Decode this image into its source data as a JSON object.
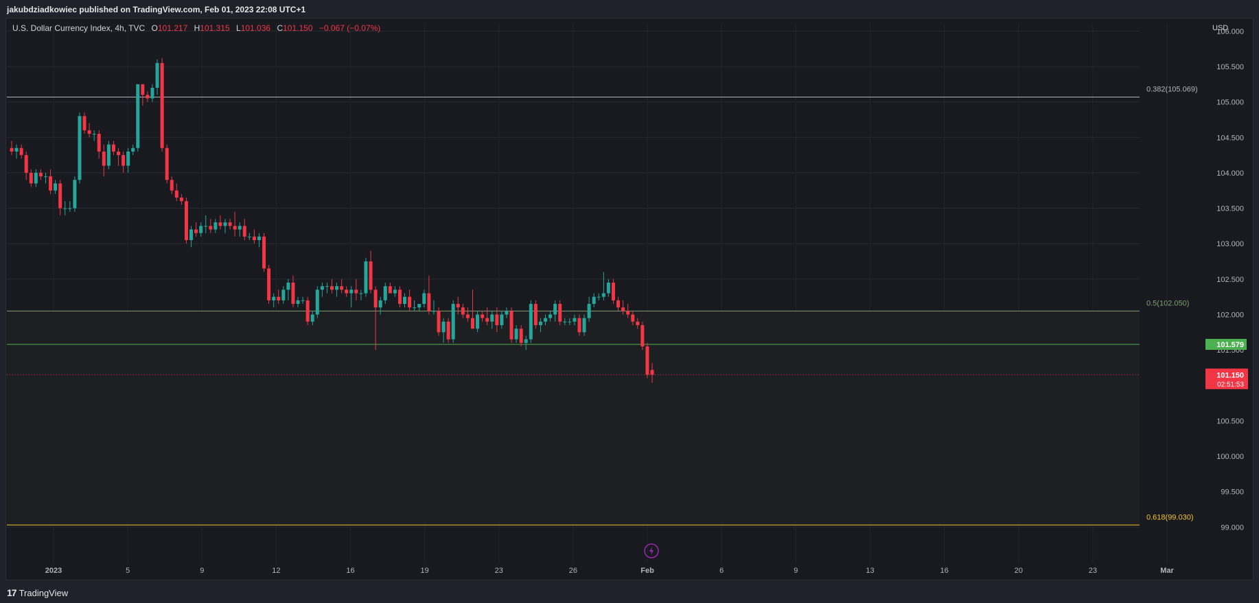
{
  "header": {
    "published": "jakubdziadkowiec published on TradingView.com, Feb 01, 2023 22:08 UTC+1"
  },
  "legend": {
    "symbol": "U.S. Dollar Currency Index, 4h, TVC",
    "o_label": "O",
    "o_value": "101.217",
    "h_label": "H",
    "h_value": "101.315",
    "l_label": "L",
    "l_value": "101.036",
    "c_label": "C",
    "c_value": "101.150",
    "change": "−0.067 (−0.07%)"
  },
  "footer": {
    "brand": "TradingView",
    "logo_mark": "17"
  },
  "colors": {
    "up": "#26a69a",
    "down": "#f23645",
    "fib_382": "#b2b5be",
    "fib_5": "#7ea06e",
    "fib_618": "#f5c431",
    "support": "#4caf50",
    "bg": "#181a20"
  },
  "chart_data": {
    "type": "candlestick",
    "title": "U.S. Dollar Currency Index, 4h, TVC",
    "currency": "USD",
    "ylim": [
      98.5,
      106.1
    ],
    "y_ticks": [
      "106.000",
      "105.500",
      "105.000",
      "104.500",
      "104.000",
      "103.500",
      "103.000",
      "102.500",
      "102.000",
      "101.500",
      "101.000",
      "100.500",
      "100.000",
      "99.500",
      "99.000"
    ],
    "x_ticks": [
      "2023",
      "5",
      "9",
      "12",
      "16",
      "19",
      "23",
      "26",
      "Feb",
      "6",
      "9",
      "13",
      "16",
      "20",
      "23",
      "Mar"
    ],
    "grid": true,
    "candles": [
      {
        "o": 104.35,
        "h": 104.45,
        "l": 104.25,
        "c": 104.3
      },
      {
        "o": 104.3,
        "h": 104.4,
        "l": 104.2,
        "c": 104.35
      },
      {
        "o": 104.35,
        "h": 104.4,
        "l": 104.2,
        "c": 104.25
      },
      {
        "o": 104.25,
        "h": 104.3,
        "l": 103.9,
        "c": 104.0
      },
      {
        "o": 104.0,
        "h": 104.05,
        "l": 103.8,
        "c": 103.85
      },
      {
        "o": 103.85,
        "h": 104.05,
        "l": 103.8,
        "c": 104.0
      },
      {
        "o": 104.0,
        "h": 104.05,
        "l": 103.9,
        "c": 103.95
      },
      {
        "o": 103.95,
        "h": 104.0,
        "l": 103.85,
        "c": 103.95
      },
      {
        "o": 103.95,
        "h": 104.05,
        "l": 103.7,
        "c": 103.75
      },
      {
        "o": 103.75,
        "h": 103.9,
        "l": 103.7,
        "c": 103.85
      },
      {
        "o": 103.85,
        "h": 103.9,
        "l": 103.4,
        "c": 103.5
      },
      {
        "o": 103.5,
        "h": 103.6,
        "l": 103.4,
        "c": 103.5
      },
      {
        "o": 103.5,
        "h": 103.6,
        "l": 103.45,
        "c": 103.5
      },
      {
        "o": 103.5,
        "h": 103.95,
        "l": 103.45,
        "c": 103.9
      },
      {
        "o": 103.9,
        "h": 104.85,
        "l": 103.85,
        "c": 104.8
      },
      {
        "o": 104.8,
        "h": 104.85,
        "l": 104.55,
        "c": 104.6
      },
      {
        "o": 104.6,
        "h": 104.7,
        "l": 104.5,
        "c": 104.55
      },
      {
        "o": 104.55,
        "h": 104.6,
        "l": 104.45,
        "c": 104.55
      },
      {
        "o": 104.55,
        "h": 104.6,
        "l": 104.2,
        "c": 104.3
      },
      {
        "o": 104.3,
        "h": 104.4,
        "l": 103.95,
        "c": 104.1
      },
      {
        "o": 104.1,
        "h": 104.45,
        "l": 104.05,
        "c": 104.4
      },
      {
        "o": 104.4,
        "h": 104.45,
        "l": 104.25,
        "c": 104.3
      },
      {
        "o": 104.3,
        "h": 104.35,
        "l": 104.1,
        "c": 104.25
      },
      {
        "o": 104.25,
        "h": 104.3,
        "l": 104.0,
        "c": 104.1
      },
      {
        "o": 104.1,
        "h": 104.35,
        "l": 104.0,
        "c": 104.3
      },
      {
        "o": 104.3,
        "h": 104.4,
        "l": 104.25,
        "c": 104.35
      },
      {
        "o": 104.35,
        "h": 105.25,
        "l": 104.3,
        "c": 105.25
      },
      {
        "o": 105.25,
        "h": 105.25,
        "l": 104.95,
        "c": 105.1
      },
      {
        "o": 105.1,
        "h": 105.15,
        "l": 105.0,
        "c": 105.05
      },
      {
        "o": 105.05,
        "h": 105.25,
        "l": 105.0,
        "c": 105.2
      },
      {
        "o": 105.2,
        "h": 105.6,
        "l": 105.1,
        "c": 105.55
      },
      {
        "o": 105.55,
        "h": 105.62,
        "l": 104.3,
        "c": 104.35
      },
      {
        "o": 104.35,
        "h": 104.4,
        "l": 103.85,
        "c": 103.9
      },
      {
        "o": 103.9,
        "h": 103.95,
        "l": 103.7,
        "c": 103.75
      },
      {
        "o": 103.75,
        "h": 103.85,
        "l": 103.6,
        "c": 103.65
      },
      {
        "o": 103.65,
        "h": 103.7,
        "l": 103.55,
        "c": 103.6
      },
      {
        "o": 103.6,
        "h": 103.65,
        "l": 103.0,
        "c": 103.05
      },
      {
        "o": 103.05,
        "h": 103.25,
        "l": 102.95,
        "c": 103.2
      },
      {
        "o": 103.2,
        "h": 103.3,
        "l": 103.1,
        "c": 103.15
      },
      {
        "o": 103.15,
        "h": 103.3,
        "l": 103.1,
        "c": 103.25
      },
      {
        "o": 103.25,
        "h": 103.4,
        "l": 103.15,
        "c": 103.25
      },
      {
        "o": 103.25,
        "h": 103.35,
        "l": 103.15,
        "c": 103.2
      },
      {
        "o": 103.2,
        "h": 103.35,
        "l": 103.15,
        "c": 103.3
      },
      {
        "o": 103.3,
        "h": 103.4,
        "l": 103.2,
        "c": 103.25
      },
      {
        "o": 103.25,
        "h": 103.35,
        "l": 103.15,
        "c": 103.3
      },
      {
        "o": 103.3,
        "h": 103.35,
        "l": 103.2,
        "c": 103.25
      },
      {
        "o": 103.25,
        "h": 103.45,
        "l": 103.1,
        "c": 103.2
      },
      {
        "o": 103.2,
        "h": 103.3,
        "l": 103.1,
        "c": 103.25
      },
      {
        "o": 103.25,
        "h": 103.35,
        "l": 103.05,
        "c": 103.1
      },
      {
        "o": 103.1,
        "h": 103.15,
        "l": 103.05,
        "c": 103.1
      },
      {
        "o": 103.1,
        "h": 103.2,
        "l": 103.0,
        "c": 103.05
      },
      {
        "o": 103.05,
        "h": 103.15,
        "l": 102.95,
        "c": 103.1
      },
      {
        "o": 103.1,
        "h": 103.15,
        "l": 102.6,
        "c": 102.65
      },
      {
        "o": 102.65,
        "h": 102.7,
        "l": 102.15,
        "c": 102.2
      },
      {
        "o": 102.2,
        "h": 102.3,
        "l": 102.1,
        "c": 102.25
      },
      {
        "o": 102.25,
        "h": 102.35,
        "l": 102.15,
        "c": 102.2
      },
      {
        "o": 102.2,
        "h": 102.4,
        "l": 102.15,
        "c": 102.35
      },
      {
        "o": 102.35,
        "h": 102.5,
        "l": 102.2,
        "c": 102.45
      },
      {
        "o": 102.45,
        "h": 102.55,
        "l": 102.1,
        "c": 102.15
      },
      {
        "o": 102.15,
        "h": 102.25,
        "l": 102.1,
        "c": 102.2
      },
      {
        "o": 102.2,
        "h": 102.25,
        "l": 102.15,
        "c": 102.2
      },
      {
        "o": 102.2,
        "h": 102.25,
        "l": 101.85,
        "c": 101.9
      },
      {
        "o": 101.9,
        "h": 102.05,
        "l": 101.85,
        "c": 102.0
      },
      {
        "o": 102.0,
        "h": 102.4,
        "l": 101.95,
        "c": 102.35
      },
      {
        "o": 102.35,
        "h": 102.45,
        "l": 102.25,
        "c": 102.4
      },
      {
        "o": 102.4,
        "h": 102.45,
        "l": 102.3,
        "c": 102.4
      },
      {
        "o": 102.4,
        "h": 102.5,
        "l": 102.3,
        "c": 102.35
      },
      {
        "o": 102.35,
        "h": 102.45,
        "l": 102.25,
        "c": 102.4
      },
      {
        "o": 102.4,
        "h": 102.5,
        "l": 102.3,
        "c": 102.35
      },
      {
        "o": 102.35,
        "h": 102.4,
        "l": 102.25,
        "c": 102.3
      },
      {
        "o": 102.3,
        "h": 102.4,
        "l": 102.1,
        "c": 102.35
      },
      {
        "o": 102.35,
        "h": 102.5,
        "l": 102.2,
        "c": 102.3
      },
      {
        "o": 102.3,
        "h": 102.35,
        "l": 102.2,
        "c": 102.3
      },
      {
        "o": 102.3,
        "h": 102.8,
        "l": 102.25,
        "c": 102.75
      },
      {
        "o": 102.75,
        "h": 102.9,
        "l": 102.3,
        "c": 102.35
      },
      {
        "o": 102.35,
        "h": 102.4,
        "l": 101.5,
        "c": 102.1
      },
      {
        "o": 102.1,
        "h": 102.25,
        "l": 102.0,
        "c": 102.2
      },
      {
        "o": 102.2,
        "h": 102.45,
        "l": 102.15,
        "c": 102.4
      },
      {
        "o": 102.4,
        "h": 102.45,
        "l": 102.3,
        "c": 102.3
      },
      {
        "o": 102.3,
        "h": 102.4,
        "l": 102.25,
        "c": 102.35
      },
      {
        "o": 102.35,
        "h": 102.4,
        "l": 102.1,
        "c": 102.15
      },
      {
        "o": 102.15,
        "h": 102.3,
        "l": 102.1,
        "c": 102.25
      },
      {
        "o": 102.25,
        "h": 102.35,
        "l": 102.05,
        "c": 102.1
      },
      {
        "o": 102.1,
        "h": 102.2,
        "l": 102.05,
        "c": 102.1
      },
      {
        "o": 102.1,
        "h": 102.15,
        "l": 102.05,
        "c": 102.15
      },
      {
        "o": 102.15,
        "h": 102.35,
        "l": 102.1,
        "c": 102.3
      },
      {
        "o": 102.3,
        "h": 102.55,
        "l": 102.0,
        "c": 102.05
      },
      {
        "o": 102.05,
        "h": 102.2,
        "l": 102.0,
        "c": 102.05
      },
      {
        "o": 102.05,
        "h": 102.1,
        "l": 101.7,
        "c": 101.75
      },
      {
        "o": 101.75,
        "h": 101.95,
        "l": 101.6,
        "c": 101.9
      },
      {
        "o": 101.9,
        "h": 101.95,
        "l": 101.6,
        "c": 101.65
      },
      {
        "o": 101.65,
        "h": 102.2,
        "l": 101.6,
        "c": 102.15
      },
      {
        "o": 102.15,
        "h": 102.25,
        "l": 102.0,
        "c": 102.1
      },
      {
        "o": 102.1,
        "h": 102.15,
        "l": 101.95,
        "c": 102.0
      },
      {
        "o": 102.0,
        "h": 102.1,
        "l": 101.9,
        "c": 101.95
      },
      {
        "o": 101.95,
        "h": 102.35,
        "l": 101.8,
        "c": 101.8
      },
      {
        "o": 101.8,
        "h": 102.05,
        "l": 101.75,
        "c": 102.0
      },
      {
        "o": 102.0,
        "h": 102.05,
        "l": 101.9,
        "c": 101.95
      },
      {
        "o": 101.95,
        "h": 102.1,
        "l": 101.85,
        "c": 101.9
      },
      {
        "o": 101.9,
        "h": 102.05,
        "l": 101.8,
        "c": 102.0
      },
      {
        "o": 102.0,
        "h": 102.1,
        "l": 101.75,
        "c": 101.85
      },
      {
        "o": 101.85,
        "h": 102.05,
        "l": 101.8,
        "c": 102.0
      },
      {
        "o": 102.0,
        "h": 102.1,
        "l": 101.95,
        "c": 102.05
      },
      {
        "o": 102.05,
        "h": 102.1,
        "l": 101.6,
        "c": 101.65
      },
      {
        "o": 101.65,
        "h": 101.85,
        "l": 101.6,
        "c": 101.8
      },
      {
        "o": 101.8,
        "h": 101.85,
        "l": 101.55,
        "c": 101.6
      },
      {
        "o": 101.6,
        "h": 101.7,
        "l": 101.5,
        "c": 101.65
      },
      {
        "o": 101.65,
        "h": 102.2,
        "l": 101.6,
        "c": 102.15
      },
      {
        "o": 102.15,
        "h": 102.2,
        "l": 101.8,
        "c": 101.85
      },
      {
        "o": 101.85,
        "h": 101.95,
        "l": 101.75,
        "c": 101.9
      },
      {
        "o": 101.9,
        "h": 102.0,
        "l": 101.85,
        "c": 101.95
      },
      {
        "o": 101.95,
        "h": 102.05,
        "l": 101.9,
        "c": 102.0
      },
      {
        "o": 102.0,
        "h": 102.2,
        "l": 101.9,
        "c": 102.15
      },
      {
        "o": 102.15,
        "h": 102.2,
        "l": 101.85,
        "c": 101.9
      },
      {
        "o": 101.9,
        "h": 101.95,
        "l": 101.85,
        "c": 101.9
      },
      {
        "o": 101.9,
        "h": 101.95,
        "l": 101.85,
        "c": 101.9
      },
      {
        "o": 101.9,
        "h": 102.0,
        "l": 101.85,
        "c": 101.95
      },
      {
        "o": 101.95,
        "h": 102.0,
        "l": 101.7,
        "c": 101.75
      },
      {
        "o": 101.75,
        "h": 102.0,
        "l": 101.7,
        "c": 101.95
      },
      {
        "o": 101.95,
        "h": 102.25,
        "l": 101.9,
        "c": 102.15
      },
      {
        "o": 102.15,
        "h": 102.3,
        "l": 102.1,
        "c": 102.25
      },
      {
        "o": 102.25,
        "h": 102.3,
        "l": 102.2,
        "c": 102.25
      },
      {
        "o": 102.25,
        "h": 102.6,
        "l": 102.2,
        "c": 102.3
      },
      {
        "o": 102.3,
        "h": 102.5,
        "l": 102.25,
        "c": 102.45
      },
      {
        "o": 102.45,
        "h": 102.5,
        "l": 102.15,
        "c": 102.2
      },
      {
        "o": 102.2,
        "h": 102.25,
        "l": 102.05,
        "c": 102.1
      },
      {
        "o": 102.1,
        "h": 102.2,
        "l": 102.0,
        "c": 102.05
      },
      {
        "o": 102.05,
        "h": 102.15,
        "l": 101.95,
        "c": 102.0
      },
      {
        "o": 102.0,
        "h": 102.05,
        "l": 101.85,
        "c": 101.9
      },
      {
        "o": 101.9,
        "h": 101.95,
        "l": 101.8,
        "c": 101.85
      },
      {
        "o": 101.85,
        "h": 101.9,
        "l": 101.5,
        "c": 101.55
      },
      {
        "o": 101.55,
        "h": 101.6,
        "l": 101.1,
        "c": 101.15
      },
      {
        "o": 101.217,
        "h": 101.315,
        "l": 101.036,
        "c": 101.15
      }
    ],
    "levels": [
      {
        "label": "0.382(105.069)",
        "value": 105.069,
        "color": "#b2b5be"
      },
      {
        "label": "0.5(102.050)",
        "value": 102.05,
        "color": "#7ea06e"
      },
      {
        "label": "0.618(99.030)",
        "value": 99.03,
        "color": "#f5c431"
      }
    ],
    "support_line": {
      "value": 101.579,
      "label": "101.579"
    },
    "last_price": {
      "value": 101.15,
      "label": "101.150",
      "countdown": "02:51:53"
    }
  }
}
